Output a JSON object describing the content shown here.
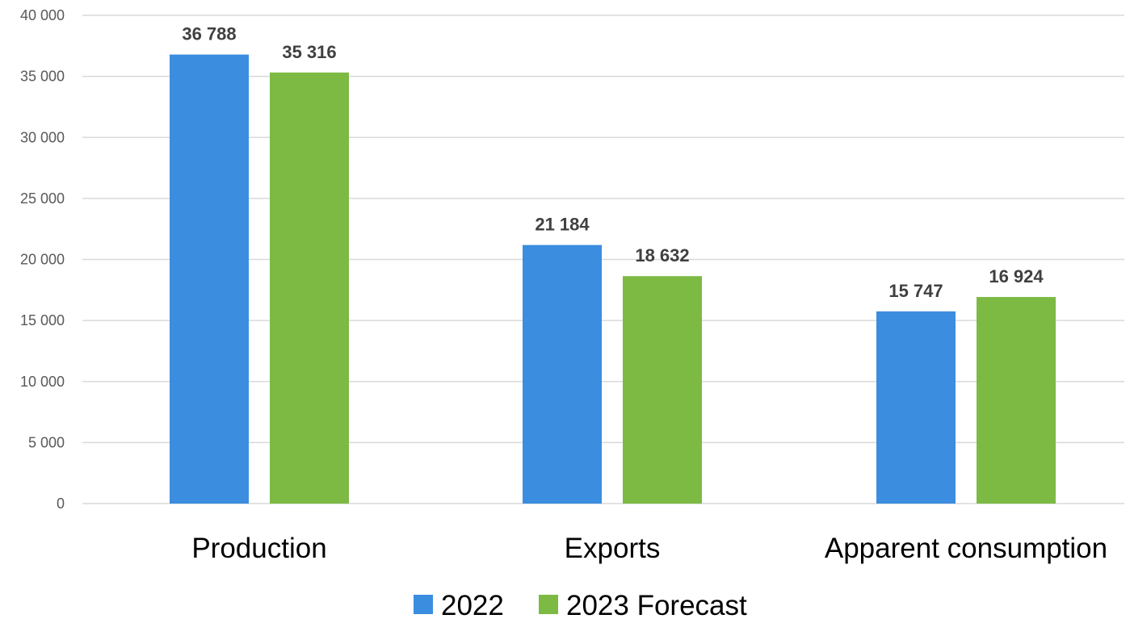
{
  "chart_data": {
    "type": "bar",
    "title": "",
    "xlabel": "",
    "ylabel": "",
    "categories": [
      "Production",
      "Exports",
      "Apparent consumption"
    ],
    "series": [
      {
        "name": "2022",
        "values": [
          36788,
          21184,
          15747
        ],
        "labels": [
          "36 788",
          "21 184",
          "15 747"
        ],
        "color": "#3b8ddf"
      },
      {
        "name": "2023 Forecast",
        "values": [
          35316,
          18632,
          16924
        ],
        "labels": [
          "35 316",
          "18 632",
          "16 924"
        ],
        "color": "#7cba44"
      }
    ],
    "ylim": [
      0,
      40000
    ],
    "yticks": [
      0,
      5000,
      10000,
      15000,
      20000,
      25000,
      30000,
      35000,
      40000
    ],
    "ytick_labels": [
      "0",
      "5 000",
      "10 000",
      "15 000",
      "20 000",
      "25 000",
      "30 000",
      "35 000",
      "40 000"
    ],
    "grid": true,
    "legend_position": "bottom-center"
  }
}
